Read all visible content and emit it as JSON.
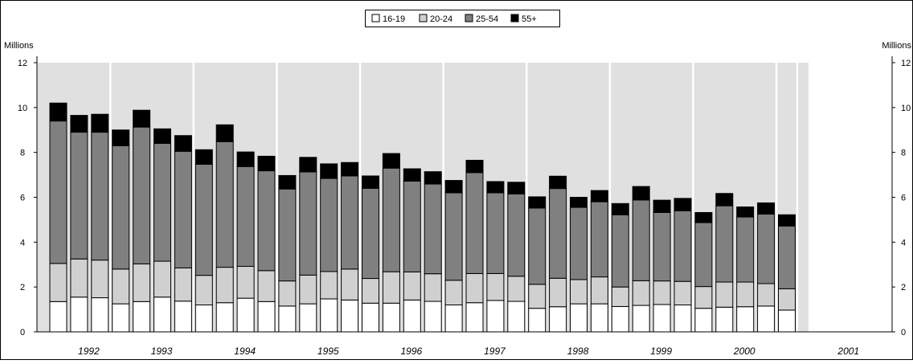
{
  "chart_data": {
    "type": "bar",
    "stacked": true,
    "legend": {
      "placement": "top-center",
      "entries": [
        "16-19",
        "20-24",
        "25-54",
        "55+"
      ]
    },
    "left_axis": {
      "label": "Millions",
      "ticks": [
        "0",
        "2",
        "4",
        "6",
        "8",
        "10",
        "12"
      ]
    },
    "right_axis": {
      "label": "Millions",
      "ticks": [
        "0",
        "2",
        "4",
        "6",
        "8",
        "10",
        "12"
      ]
    },
    "ylim": [
      0,
      12
    ],
    "year_labels": [
      "1992",
      "1993",
      "1994",
      "1995",
      "1996",
      "1997",
      "1998",
      "1999",
      "2000",
      "2001"
    ],
    "bars_per_year": 4,
    "first_year_bars": 3,
    "colors": {
      "s16_19": "#ffffff",
      "s20_24": "#d0d0d0",
      "s25_54": "#808080",
      "s55_plus": "#000000",
      "plot_background": "#e0e0e0",
      "grid": "#ffffff"
    },
    "series": [
      {
        "name": "16-19",
        "values": [
          1.35,
          1.55,
          1.52,
          1.25,
          1.35,
          1.55,
          1.37,
          1.2,
          1.3,
          1.5,
          1.35,
          1.15,
          1.25,
          1.47,
          1.42,
          1.28,
          1.28,
          1.42,
          1.36,
          1.2,
          1.3,
          1.4,
          1.36,
          1.05,
          1.12,
          1.25,
          1.25,
          1.13,
          1.18,
          1.22,
          1.2,
          1.05,
          1.1,
          1.12,
          1.15,
          0.97
        ]
      },
      {
        "name": "20-24",
        "values": [
          1.7,
          1.7,
          1.68,
          1.55,
          1.68,
          1.6,
          1.48,
          1.32,
          1.58,
          1.42,
          1.38,
          1.12,
          1.28,
          1.22,
          1.38,
          1.1,
          1.4,
          1.25,
          1.23,
          1.1,
          1.3,
          1.2,
          1.12,
          1.07,
          1.27,
          1.08,
          1.2,
          0.87,
          1.1,
          1.05,
          1.05,
          0.97,
          1.12,
          1.1,
          1.0,
          0.95
        ]
      },
      {
        "name": "25-54",
        "values": [
          6.35,
          5.65,
          5.7,
          5.5,
          6.1,
          5.25,
          5.2,
          4.95,
          5.6,
          4.45,
          4.45,
          4.1,
          4.6,
          4.15,
          4.15,
          4.02,
          4.62,
          4.05,
          4.0,
          3.9,
          4.5,
          3.6,
          3.67,
          3.4,
          4.0,
          3.22,
          3.35,
          3.22,
          3.6,
          3.05,
          3.15,
          2.85,
          3.4,
          2.9,
          3.1,
          2.8
        ]
      },
      {
        "name": "55+",
        "values": [
          0.8,
          0.75,
          0.8,
          0.7,
          0.75,
          0.65,
          0.7,
          0.65,
          0.75,
          0.65,
          0.65,
          0.6,
          0.65,
          0.65,
          0.6,
          0.55,
          0.65,
          0.55,
          0.55,
          0.55,
          0.55,
          0.5,
          0.52,
          0.5,
          0.55,
          0.45,
          0.5,
          0.5,
          0.6,
          0.55,
          0.55,
          0.45,
          0.55,
          0.45,
          0.5,
          0.5
        ]
      }
    ]
  }
}
